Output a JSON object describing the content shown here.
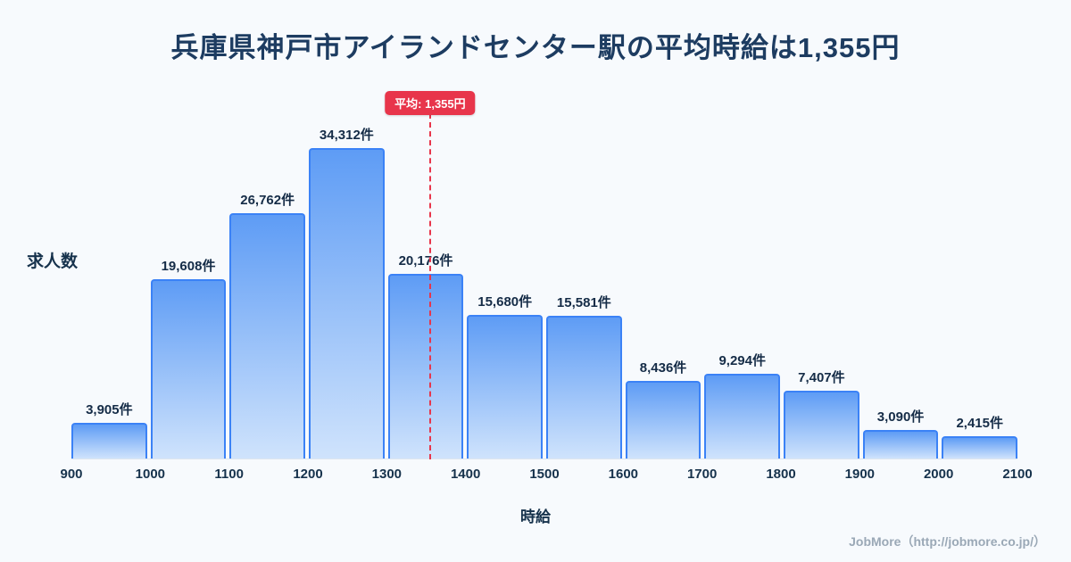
{
  "title": "兵庫県神戸市アイランドセンター駅の平均時給は1,355円",
  "chart_data": {
    "type": "bar",
    "bin_edges": [
      900,
      1000,
      1100,
      1200,
      1300,
      1400,
      1500,
      1600,
      1700,
      1800,
      1900,
      2000,
      2100
    ],
    "values": [
      3905,
      19608,
      26762,
      34312,
      20176,
      15680,
      15581,
      8436,
      9294,
      7407,
      3090,
      2415
    ],
    "value_labels": [
      "3,905件",
      "19,608件",
      "26,762件",
      "34,312件",
      "20,176件",
      "15,680件",
      "15,581件",
      "8,436件",
      "9,294件",
      "7,407件",
      "3,090件",
      "2,415件"
    ],
    "xlabel": "時給",
    "ylabel": "求人数",
    "xlim": [
      900,
      2100
    ],
    "grid": false,
    "legend": "none",
    "average": {
      "value": 1355,
      "label": "平均: 1,355円"
    },
    "colors": {
      "bar_fill_top": "#5e9cf5",
      "bar_fill_bottom": "#cfe3fc",
      "bar_border": "#3b82f6",
      "average_line": "#e8354b",
      "title_text": "#1d3c61",
      "background": "#f7fafd"
    }
  },
  "footer": {
    "credit": "JobMore（http://jobmore.co.jp/）"
  }
}
